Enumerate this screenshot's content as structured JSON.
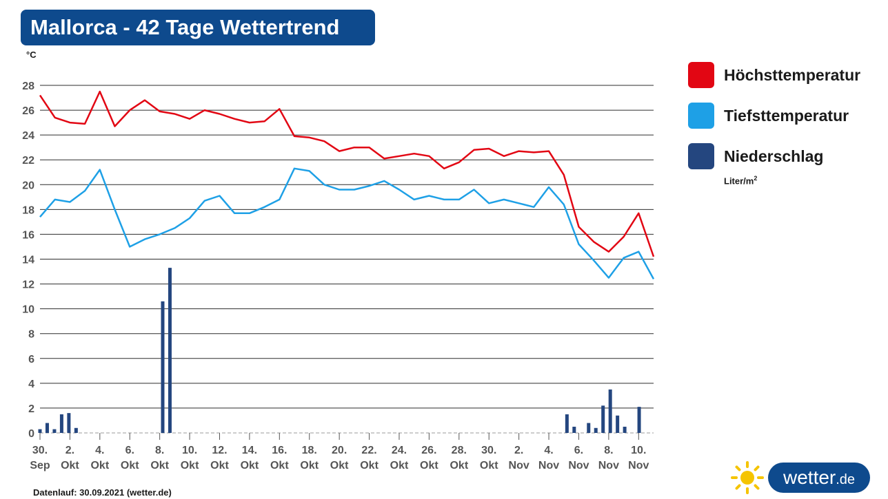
{
  "title": "Mallorca - 42 Tage Wettertrend",
  "unit_label": "°C",
  "legend": {
    "high": "Höchsttemperatur",
    "low": "Tiefsttemperatur",
    "precip": "Niederschlag",
    "precip_unit": "Liter/m",
    "precip_unit_sup": "2"
  },
  "footer": "Datenlauf: 30.09.2021 (wetter.de)",
  "brand": {
    "name": "wetter",
    "tld": ".de"
  },
  "colors": {
    "high": "#e20613",
    "low": "#1ea0e6",
    "precip": "#24467f",
    "title_bg": "#0e4a8d",
    "sun": "#f5c400"
  },
  "chart_data": {
    "type": "line",
    "ylim": [
      0,
      28
    ],
    "yticks": [
      0,
      2,
      4,
      6,
      8,
      10,
      12,
      14,
      16,
      18,
      20,
      22,
      24,
      26,
      28
    ],
    "x_tick_labels": [
      [
        "30.",
        "Sep"
      ],
      [
        "2.",
        "Okt"
      ],
      [
        "4.",
        "Okt"
      ],
      [
        "6.",
        "Okt"
      ],
      [
        "8.",
        "Okt"
      ],
      [
        "10.",
        "Okt"
      ],
      [
        "12.",
        "Okt"
      ],
      [
        "14.",
        "Okt"
      ],
      [
        "16.",
        "Okt"
      ],
      [
        "18.",
        "Okt"
      ],
      [
        "20.",
        "Okt"
      ],
      [
        "22.",
        "Okt"
      ],
      [
        "24.",
        "Okt"
      ],
      [
        "26.",
        "Okt"
      ],
      [
        "28.",
        "Okt"
      ],
      [
        "30.",
        "Okt"
      ],
      [
        "2.",
        "Nov"
      ],
      [
        "4.",
        "Nov"
      ],
      [
        "6.",
        "Nov"
      ],
      [
        "8.",
        "Nov"
      ],
      [
        "10.",
        "Nov"
      ]
    ],
    "series": [
      {
        "name": "Höchsttemperatur",
        "values": [
          27.2,
          25.4,
          25.0,
          24.9,
          27.5,
          24.7,
          26.0,
          26.8,
          25.9,
          25.7,
          25.3,
          26.0,
          25.7,
          25.3,
          25.0,
          25.1,
          26.1,
          23.9,
          23.8,
          23.5,
          22.7,
          23.0,
          23.0,
          22.1,
          22.3,
          22.5,
          22.3,
          21.3,
          21.8,
          22.8,
          22.9,
          22.3,
          22.7,
          22.6,
          22.7,
          20.8,
          16.6,
          15.4,
          14.6,
          15.8,
          17.7,
          14.2
        ]
      },
      {
        "name": "Tiefsttemperatur",
        "values": [
          17.4,
          18.8,
          18.6,
          19.5,
          21.2,
          18.0,
          15.0,
          15.6,
          16.0,
          16.5,
          17.3,
          18.7,
          19.1,
          17.7,
          17.7,
          18.2,
          18.8,
          21.3,
          21.1,
          20.0,
          19.6,
          19.6,
          19.9,
          20.3,
          19.6,
          18.8,
          19.1,
          18.8,
          18.8,
          19.6,
          18.5,
          18.8,
          18.5,
          18.2,
          19.8,
          18.4,
          15.2,
          13.9,
          12.5,
          14.1,
          14.6,
          12.4
        ]
      },
      {
        "name": "Niederschlag",
        "type": "bar",
        "values": [
          0.3,
          0.8,
          0.3,
          1.5,
          1.6,
          0.4,
          0,
          0,
          0,
          0,
          0,
          0,
          0,
          0,
          0,
          0,
          0,
          10.6,
          13.3,
          0,
          0,
          0,
          0,
          0,
          0,
          0,
          0,
          0,
          0,
          0,
          0,
          0,
          0,
          0,
          0,
          0,
          0,
          0,
          0,
          0,
          0,
          0,
          0,
          0,
          0,
          0,
          0,
          0,
          0,
          0,
          0,
          0,
          0,
          0,
          0,
          0,
          0,
          0,
          0,
          0,
          0,
          0,
          0,
          0,
          0,
          0,
          0,
          0,
          0,
          0,
          0,
          0,
          0,
          1.5,
          0.5,
          0,
          0.8,
          0.4,
          2.2,
          3.5,
          1.4,
          0.5,
          0,
          2.1,
          0,
          0
        ]
      }
    ],
    "grid": true,
    "legend_position": "right"
  }
}
